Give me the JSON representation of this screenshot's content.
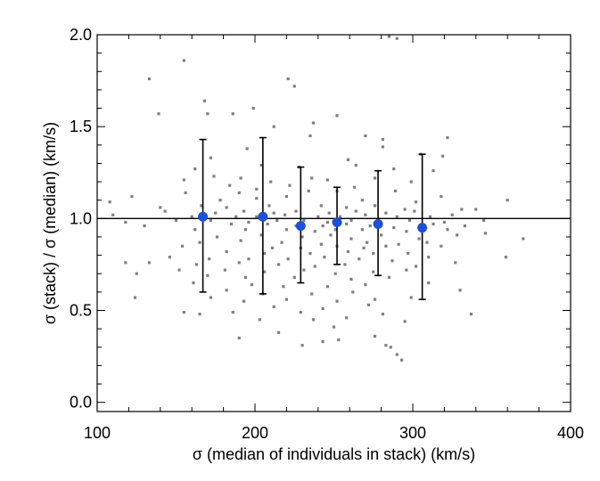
{
  "chart_data": {
    "type": "scatter",
    "title": "",
    "xlabel": "σ (median of individuals in stack) (km/s)",
    "ylabel": "σ (stack) / σ (median) (km/s)",
    "xlim": [
      100,
      400
    ],
    "ylim": [
      -0.05,
      2.0
    ],
    "x_ticks": [
      100,
      200,
      300,
      400
    ],
    "x_tick_labels": [
      "100",
      "200",
      "300",
      "400"
    ],
    "y_ticks": [
      0.0,
      0.5,
      1.0,
      1.5,
      2.0
    ],
    "y_tick_labels": [
      "0.0",
      "0.5",
      "1.0",
      "1.5",
      "2.0"
    ],
    "grid": false,
    "legend": "none",
    "reference_line": {
      "y": 1.0,
      "color": "#000000"
    },
    "colors": {
      "scatter": "#808080",
      "binned": "#1a4fe0",
      "errorbar": "#000000"
    },
    "series": [
      {
        "kind": "scatter",
        "points": [
          [
            155,
            1.86
          ],
          [
            133,
            1.76
          ],
          [
            221,
            1.76
          ],
          [
            225,
            1.72
          ],
          [
            285,
            1.99
          ],
          [
            290,
            1.98
          ],
          [
            168,
            1.64
          ],
          [
            199,
            1.6
          ],
          [
            170,
            1.57
          ],
          [
            186,
            1.57
          ],
          [
            139,
            1.57
          ],
          [
            252,
            1.56
          ],
          [
            237,
            1.52
          ],
          [
            212,
            1.5
          ],
          [
            235,
            1.45
          ],
          [
            270,
            1.45
          ],
          [
            281,
            1.43
          ],
          [
            322,
            1.44
          ],
          [
            195,
            1.38
          ],
          [
            281,
            1.39
          ],
          [
            305,
            1.35
          ],
          [
            319,
            1.34
          ],
          [
            172,
            1.33
          ],
          [
            259,
            1.32
          ],
          [
            162,
            1.27
          ],
          [
            204,
            1.29
          ],
          [
            228,
            1.28
          ],
          [
            264,
            1.29
          ],
          [
            288,
            1.27
          ],
          [
            313,
            1.26
          ],
          [
            174,
            1.23
          ],
          [
            191,
            1.22
          ],
          [
            236,
            1.22
          ],
          [
            276,
            1.22
          ],
          [
            155,
            1.21
          ],
          [
            210,
            1.2
          ],
          [
            246,
            1.21
          ],
          [
            299,
            1.2
          ],
          [
            184,
            1.18
          ],
          [
            222,
            1.18
          ],
          [
            263,
            1.17
          ],
          [
            201,
            1.16
          ],
          [
            156,
            1.14
          ],
          [
            190,
            1.14
          ],
          [
            234,
            1.15
          ],
          [
            252,
            1.15
          ],
          [
            289,
            1.15
          ],
          [
            318,
            1.12
          ],
          [
            122,
            1.12
          ],
          [
            178,
            1.1
          ],
          [
            201,
            1.11
          ],
          [
            220,
            1.12
          ],
          [
            268,
            1.1
          ],
          [
            302,
            1.09
          ],
          [
            108,
            1.09
          ],
          [
            140,
            1.06
          ],
          [
            166,
            1.07
          ],
          [
            182,
            1.06
          ],
          [
            209,
            1.07
          ],
          [
            242,
            1.07
          ],
          [
            258,
            1.06
          ],
          [
            276,
            1.07
          ],
          [
            295,
            1.05
          ],
          [
            331,
            1.05
          ],
          [
            360,
            1.1
          ],
          [
            143,
            1.04
          ],
          [
            175,
            1.03
          ],
          [
            193,
            1.04
          ],
          [
            212,
            1.03
          ],
          [
            226,
            1.04
          ],
          [
            247,
            1.03
          ],
          [
            264,
            1.04
          ],
          [
            283,
            1.03
          ],
          [
            301,
            1.04
          ],
          [
            340,
            1.05
          ],
          [
            110,
            1.02
          ],
          [
            160,
            1.01
          ],
          [
            188,
            1.01
          ],
          [
            201,
            1.01
          ],
          [
            219,
            1.02
          ],
          [
            240,
            1.01
          ],
          [
            254,
            1.01
          ],
          [
            270,
            1.02
          ],
          [
            290,
            1.01
          ],
          [
            311,
            1.01
          ],
          [
            325,
            1.02
          ],
          [
            150,
            0.99
          ],
          [
            172,
            0.99
          ],
          [
            196,
            0.98
          ],
          [
            214,
            0.99
          ],
          [
            231,
            0.99
          ],
          [
            246,
            0.98
          ],
          [
            261,
            0.99
          ],
          [
            279,
            0.98
          ],
          [
            298,
            0.99
          ],
          [
            320,
            0.98
          ],
          [
            345,
            0.99
          ],
          [
            118,
            0.98
          ],
          [
            130,
            0.96
          ],
          [
            185,
            0.97
          ],
          [
            208,
            0.97
          ],
          [
            226,
            0.96
          ],
          [
            243,
            0.96
          ],
          [
            258,
            0.97
          ],
          [
            273,
            0.96
          ],
          [
            288,
            0.95
          ],
          [
            313,
            0.97
          ],
          [
            333,
            0.96
          ],
          [
            162,
            0.94
          ],
          [
            194,
            0.94
          ],
          [
            220,
            0.94
          ],
          [
            238,
            0.93
          ],
          [
            251,
            0.94
          ],
          [
            268,
            0.94
          ],
          [
            296,
            0.93
          ],
          [
            322,
            0.94
          ],
          [
            346,
            0.92
          ],
          [
            370,
            0.89
          ],
          [
            176,
            0.9
          ],
          [
            204,
            0.91
          ],
          [
            230,
            0.9
          ],
          [
            248,
            0.91
          ],
          [
            261,
            0.89
          ],
          [
            280,
            0.91
          ],
          [
            304,
            0.89
          ],
          [
            328,
            0.91
          ],
          [
            165,
            0.87
          ],
          [
            191,
            0.88
          ],
          [
            217,
            0.87
          ],
          [
            242,
            0.86
          ],
          [
            271,
            0.87
          ],
          [
            291,
            0.86
          ],
          [
            309,
            0.87
          ],
          [
            154,
            0.85
          ],
          [
            211,
            0.84
          ],
          [
            229,
            0.84
          ],
          [
            252,
            0.85
          ],
          [
            269,
            0.84
          ],
          [
            283,
            0.85
          ],
          [
            318,
            0.85
          ],
          [
            182,
            0.82
          ],
          [
            206,
            0.81
          ],
          [
            235,
            0.81
          ],
          [
            259,
            0.82
          ],
          [
            275,
            0.81
          ],
          [
            297,
            0.81
          ],
          [
            310,
            0.79
          ],
          [
            359,
            0.79
          ],
          [
            146,
            0.79
          ],
          [
            171,
            0.78
          ],
          [
            196,
            0.78
          ],
          [
            221,
            0.78
          ],
          [
            244,
            0.79
          ],
          [
            266,
            0.78
          ],
          [
            287,
            0.77
          ],
          [
            118,
            0.76
          ],
          [
            133,
            0.76
          ],
          [
            163,
            0.75
          ],
          [
            190,
            0.76
          ],
          [
            215,
            0.75
          ],
          [
            238,
            0.74
          ],
          [
            257,
            0.75
          ],
          [
            302,
            0.74
          ],
          [
            327,
            0.76
          ],
          [
            152,
            0.72
          ],
          [
            181,
            0.72
          ],
          [
            206,
            0.71
          ],
          [
            231,
            0.72
          ],
          [
            251,
            0.7
          ],
          [
            275,
            0.71
          ],
          [
            296,
            0.72
          ],
          [
            125,
            0.7
          ],
          [
            170,
            0.69
          ],
          [
            194,
            0.68
          ],
          [
            225,
            0.68
          ],
          [
            261,
            0.67
          ],
          [
            285,
            0.68
          ],
          [
            310,
            0.65
          ],
          [
            161,
            0.65
          ],
          [
            198,
            0.64
          ],
          [
            218,
            0.63
          ],
          [
            246,
            0.63
          ],
          [
            270,
            0.64
          ],
          [
            330,
            0.61
          ],
          [
            182,
            0.61
          ],
          [
            205,
            0.59
          ],
          [
            236,
            0.59
          ],
          [
            262,
            0.6
          ],
          [
            124,
            0.57
          ],
          [
            172,
            0.57
          ],
          [
            193,
            0.55
          ],
          [
            220,
            0.56
          ],
          [
            252,
            0.55
          ],
          [
            276,
            0.56
          ],
          [
            299,
            0.57
          ],
          [
            212,
            0.52
          ],
          [
            243,
            0.51
          ],
          [
            272,
            0.53
          ],
          [
            155,
            0.49
          ],
          [
            186,
            0.49
          ],
          [
            229,
            0.49
          ],
          [
            281,
            0.48
          ],
          [
            337,
            0.48
          ],
          [
            165,
            0.48
          ],
          [
            203,
            0.45
          ],
          [
            237,
            0.45
          ],
          [
            258,
            0.46
          ],
          [
            295,
            0.44
          ],
          [
            250,
            0.41
          ],
          [
            215,
            0.38
          ],
          [
            276,
            0.36
          ],
          [
            190,
            0.35
          ],
          [
            253,
            0.34
          ],
          [
            243,
            0.33
          ],
          [
            283,
            0.31
          ],
          [
            230,
            0.31
          ],
          [
            286,
            0.3
          ],
          [
            290,
            0.26
          ],
          [
            293,
            0.23
          ]
        ]
      },
      {
        "kind": "binned",
        "points": [
          {
            "x": 167,
            "y": 1.01,
            "lo": 0.6,
            "hi": 1.43
          },
          {
            "x": 205,
            "y": 1.01,
            "lo": 0.59,
            "hi": 1.44
          },
          {
            "x": 229,
            "y": 0.96,
            "lo": 0.65,
            "hi": 1.28
          },
          {
            "x": 252,
            "y": 0.98,
            "lo": 0.75,
            "hi": 1.17
          },
          {
            "x": 278,
            "y": 0.97,
            "lo": 0.69,
            "hi": 1.26
          },
          {
            "x": 306,
            "y": 0.95,
            "lo": 0.56,
            "hi": 1.35
          }
        ]
      }
    ]
  }
}
